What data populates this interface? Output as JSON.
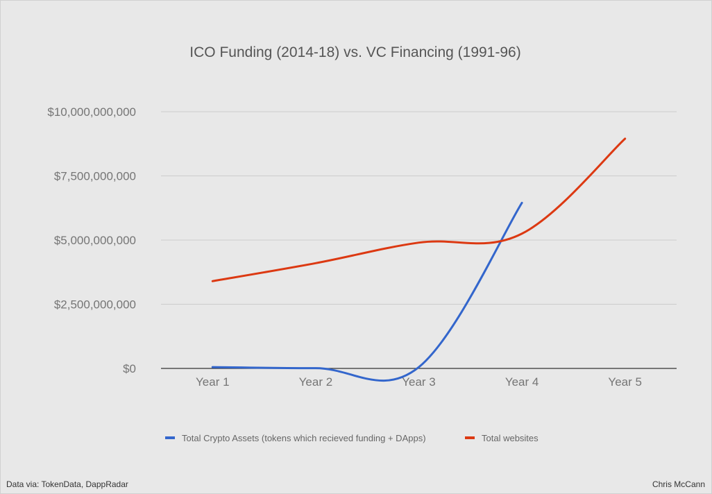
{
  "chart_data": {
    "type": "line",
    "title": "ICO Funding (2014-18) vs. VC Financing (1991-96)",
    "xlabel": "",
    "ylabel": "",
    "categories": [
      "Year 1",
      "Year 2",
      "Year 3",
      "Year 4",
      "Year 5"
    ],
    "ylim": [
      0,
      10000000000
    ],
    "yticks": [
      0,
      2500000000,
      5000000000,
      7500000000,
      10000000000
    ],
    "ytick_labels": [
      "$0",
      "$2,500,000,000",
      "$5,000,000,000",
      "$7,500,000,000",
      "$10,000,000,000"
    ],
    "grid": true,
    "legend_position": "bottom",
    "series": [
      {
        "name": "Total Crypto Assets (tokens which recieved funding + DApps)",
        "color": "#3366cc",
        "values": [
          50000000,
          10000000,
          50000000,
          6450000000,
          null
        ]
      },
      {
        "name": "Total websites",
        "color": "#dc3912",
        "values": [
          3400000000,
          4100000000,
          4900000000,
          5250000000,
          8950000000
        ]
      }
    ]
  },
  "footer": {
    "source": "Data via: TokenData, DappRadar",
    "author": "Chris McCann"
  }
}
